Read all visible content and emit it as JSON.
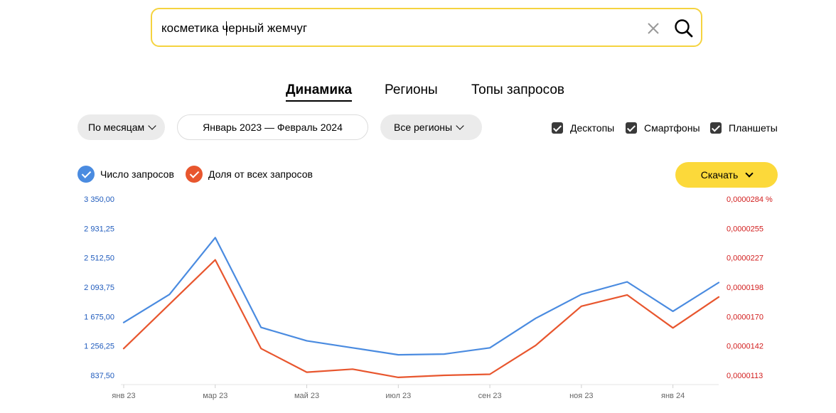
{
  "search": {
    "query": "косметика черный жемчуг"
  },
  "tabs": [
    {
      "label": "Динамика",
      "active": true
    },
    {
      "label": "Регионы",
      "active": false
    },
    {
      "label": "Топы запросов",
      "active": false
    }
  ],
  "filters": {
    "period_group": "По месяцам",
    "date_range": "Январь 2023 — Февраль 2024",
    "region": "Все регионы"
  },
  "devices": [
    {
      "label": "Десктопы",
      "checked": true
    },
    {
      "label": "Смартфоны",
      "checked": true
    },
    {
      "label": "Планшеты",
      "checked": true
    }
  ],
  "download_label": "Скачать",
  "colors": {
    "accent": "#fcd93a",
    "search_border": "#f5d33f",
    "series_count": "#4a8be0",
    "series_share": "#e8562e"
  },
  "chart_data": {
    "type": "line",
    "x": [
      "янв 23",
      "фев 23",
      "мар 23",
      "апр 23",
      "май 23",
      "июн 23",
      "июл 23",
      "авг 23",
      "сен 23",
      "окт 23",
      "ноя 23",
      "дек 23",
      "янв 24",
      "фев 24"
    ],
    "x_tick_labels": [
      "янв 23",
      "мар 23",
      "май 23",
      "июл 23",
      "сен 23",
      "ноя 23",
      "янв 24"
    ],
    "series": [
      {
        "name": "Число запросов",
        "axis": "left",
        "color": "#4a8be0",
        "values": [
          1590,
          1990,
          2800,
          1520,
          1330,
          1230,
          1130,
          1140,
          1230,
          1650,
          1990,
          2170,
          1750,
          2160
        ]
      },
      {
        "name": "Доля от всех запросов",
        "axis": "right",
        "color": "#e8562e",
        "values": [
          1.39e-05,
          1.82e-05,
          2.25e-05,
          1.39e-05,
          1.16e-05,
          1.19e-05,
          1.11e-05,
          1.13e-05,
          1.14e-05,
          1.42e-05,
          1.8e-05,
          1.91e-05,
          1.59e-05,
          1.89e-05
        ]
      }
    ],
    "y_left": {
      "ticks": [
        "3 350,00",
        "2 931,25",
        "2 512,50",
        "2 093,75",
        "1 675,00",
        "1 256,25",
        "837,50"
      ],
      "ylim": [
        837.5,
        3350
      ]
    },
    "y_right": {
      "ticks": [
        "0,0000284 %",
        "0,0000255",
        "0,0000227",
        "0,0000198",
        "0,0000170",
        "0,0000142",
        "0,0000113"
      ],
      "ylim": [
        1.13e-05,
        2.84e-05
      ]
    },
    "grid": false,
    "legend": "top-left"
  }
}
